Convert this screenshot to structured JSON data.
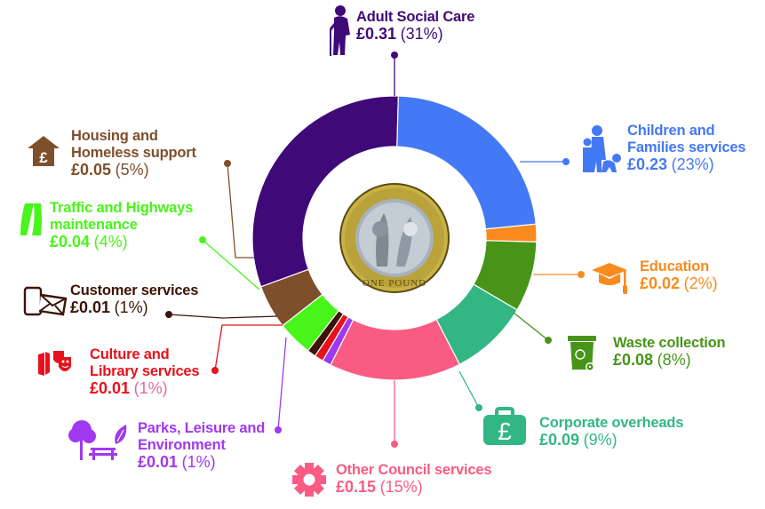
{
  "chart_data": {
    "type": "pie",
    "variant": "donut",
    "title": "",
    "center_image": "one-pound-coin",
    "center_image_text": "ONE POUND",
    "unit": "£ per £1 spent",
    "categories": [
      "Adult Social Care",
      "Children and Families services",
      "Education",
      "Waste collection",
      "Corporate overheads",
      "Other Council services",
      "Parks, Leisure and Environment",
      "Culture and Library services",
      "Customer services",
      "Traffic and Highways maintenance",
      "Housing and Homeless support"
    ],
    "values": [
      0.31,
      0.23,
      0.02,
      0.08,
      0.09,
      0.15,
      0.01,
      0.01,
      0.01,
      0.04,
      0.05
    ],
    "percentages": [
      31,
      23,
      2,
      8,
      9,
      15,
      1,
      1,
      1,
      4,
      5
    ],
    "colors": [
      "#3f0a78",
      "#4479f5",
      "#f98a1e",
      "#479418",
      "#32b784",
      "#fa5b82",
      "#a038f0",
      "#e8111b",
      "#3c1407",
      "#48f51a",
      "#7e4f2b"
    ],
    "start_angle_deg": 90,
    "direction": "clockwise",
    "legend_position": "around"
  },
  "segments": [
    {
      "id": "adult-social-care",
      "name": "Adult Social Care",
      "amount": "£0.31",
      "pct": "(31%)",
      "color": "#3f0a78",
      "icon": "elderly-person-icon"
    },
    {
      "id": "children-families",
      "name": "Children and Families services",
      "name_lines": [
        "Children and",
        "Families services"
      ],
      "amount": "£0.23",
      "pct": "(23%)",
      "color": "#4479f5",
      "icon": "family-icon"
    },
    {
      "id": "education",
      "name": "Education",
      "amount": "£0.02",
      "pct": "(2%)",
      "color": "#f98a1e",
      "icon": "graduation-cap-icon"
    },
    {
      "id": "waste-collection",
      "name": "Waste collection",
      "amount": "£0.08",
      "pct": "(8%)",
      "color": "#479418",
      "icon": "wheelie-bin-icon"
    },
    {
      "id": "corporate-overheads",
      "name": "Corporate overheads",
      "amount": "£0.09",
      "pct": "(9%)",
      "color": "#32b784",
      "icon": "pound-briefcase-icon"
    },
    {
      "id": "other-council",
      "name": "Other Council services",
      "amount": "£0.15",
      "pct": "(15%)",
      "color": "#fa5b82",
      "icon": "gear-icon"
    },
    {
      "id": "parks-leisure",
      "name": "Parks, Leisure and Environment",
      "name_lines": [
        "Parks, Leisure and",
        "Environment"
      ],
      "amount": "£0.01",
      "pct": "(1%)",
      "color": "#a038f0",
      "icon": "tree-bench-leaf-icon"
    },
    {
      "id": "culture-library",
      "name": "Culture and Library services",
      "name_lines": [
        "Culture and",
        "Library services"
      ],
      "amount": "£0.01",
      "pct": "(1%)",
      "color": "#e8111b",
      "pct_color": "#e06aa0",
      "icon": "book-theatre-masks-icon"
    },
    {
      "id": "customer-services",
      "name": "Customer services",
      "amount": "£0.01",
      "pct": "(1%)",
      "color": "#3c1407",
      "icon": "phone-envelope-icon"
    },
    {
      "id": "traffic-highways",
      "name": "Traffic and Highways maintenance",
      "name_lines": [
        "Traffic and Highways",
        "maintenance"
      ],
      "amount": "£0.04",
      "pct": "(4%)",
      "color": "#48f51a",
      "icon": "road-icon"
    },
    {
      "id": "housing-homeless",
      "name": "Housing and Homeless support",
      "name_lines": [
        "Housing and",
        "Homeless support"
      ],
      "amount": "£0.05",
      "pct": "(5%)",
      "color": "#7e4f2b",
      "icon": "house-pound-icon"
    }
  ]
}
